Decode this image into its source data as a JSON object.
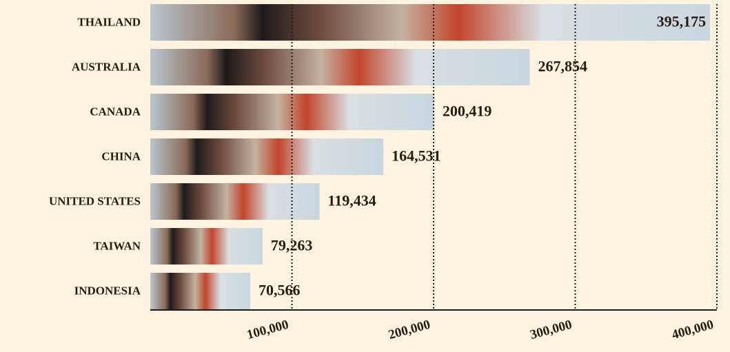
{
  "chart_data": {
    "type": "bar",
    "orientation": "horizontal",
    "categories": [
      "THAILAND",
      "AUSTRALIA",
      "CANADA",
      "CHINA",
      "UNITED STATES",
      "TAIWAN",
      "INDONESIA"
    ],
    "values": [
      395175,
      267854,
      200419,
      164531,
      119434,
      79263,
      70566
    ],
    "value_labels": [
      "395,175",
      "267,854",
      "200,419",
      "164,531",
      "119,434",
      "79,263",
      "70,566"
    ],
    "xlim": [
      0,
      400000
    ],
    "xticks": [
      {
        "value": 100000,
        "label": "100,000"
      },
      {
        "value": 200000,
        "label": "200,000"
      },
      {
        "value": 300000,
        "label": "300,000"
      },
      {
        "value": 400000,
        "label": "400,000"
      }
    ],
    "grid": true
  }
}
